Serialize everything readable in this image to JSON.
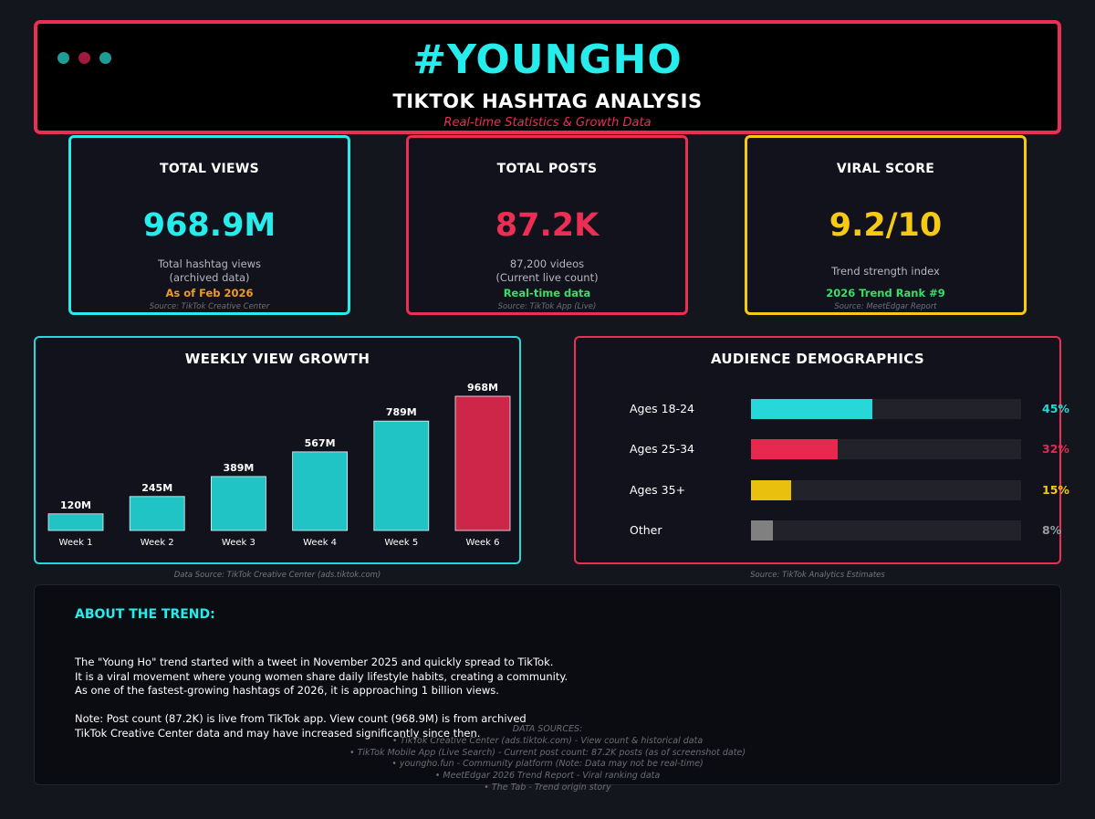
{
  "header": {
    "hashtag": "#YOUNGHO",
    "subtitle": "TIKTOK HASHTAG ANALYSIS",
    "tagline": "Real-time Statistics & Growth Data"
  },
  "cards": [
    {
      "title": "TOTAL VIEWS",
      "value": "968.9M",
      "desc1": "Total hashtag views",
      "desc2": "(archived data)",
      "note": "As of Feb 2026",
      "source": "Source: TikTok Creative Center",
      "color": "#27ecec",
      "note_color": "#f29a22"
    },
    {
      "title": "TOTAL POSTS",
      "value": "87.2K",
      "desc1": "87,200 videos",
      "desc2": "(Current live count)",
      "note": "Real-time data",
      "source": "Source: TikTok App (Live)",
      "color": "#ea2e54",
      "note_color": "#35e06a"
    },
    {
      "title": "VIRAL SCORE",
      "value": "9.2/10",
      "desc1": "Trend strength index",
      "desc2": "",
      "note": "2026 Trend Rank #9",
      "source": "Source: MeetEdgar Report",
      "color": "#f6c915",
      "note_color": "#35e06a"
    }
  ],
  "chart_data": {
    "type": "bar",
    "title": "WEEKLY VIEW GROWTH",
    "categories": [
      "Week 1",
      "Week 2",
      "Week 3",
      "Week 4",
      "Week 5",
      "Week 6"
    ],
    "values": [
      120,
      245,
      389,
      567,
      789,
      968
    ],
    "value_labels": [
      "120M",
      "245M",
      "389M",
      "567M",
      "789M",
      "968M"
    ],
    "colors": [
      "#21c4c4",
      "#21c4c4",
      "#21c4c4",
      "#21c4c4",
      "#21c4c4",
      "#cd2649"
    ],
    "source": "Data Source: TikTok Creative Center (ads.tiktok.com)"
  },
  "demographics": {
    "title": "AUDIENCE DEMOGRAPHICS",
    "source": "Source: TikTok Analytics Estimates",
    "rows": [
      {
        "label": "Ages 18-24",
        "pct_text": "45%",
        "fraction": 0.45,
        "color": "#27d8d8",
        "text_color": "#27d8d8"
      },
      {
        "label": "Ages 25-34",
        "pct_text": "32%",
        "fraction": 0.32,
        "color": "#e8294f",
        "text_color": "#e8294f"
      },
      {
        "label": "Ages 35+",
        "pct_text": "15%",
        "fraction": 0.15,
        "color": "#e9c00e",
        "text_color": "#f6c915"
      },
      {
        "label": "Other",
        "pct_text": "8%",
        "fraction": 0.08,
        "color": "#808080",
        "text_color": "#9a9aa2"
      }
    ]
  },
  "about": {
    "title": "ABOUT THE TREND:",
    "lines": [
      "The \"Young Ho\" trend started with a tweet in November 2025 and quickly spread to TikTok.",
      "It is a viral movement where young women share daily lifestyle habits, creating a community.",
      "As one of the fastest-growing hashtags of 2026, it is approaching 1 billion views.",
      "",
      "Note: Post count (87.2K) is live from TikTok app. View count (968.9M) is from archived",
      "TikTok Creative Center data and may have increased significantly since then."
    ],
    "sources_title": "DATA SOURCES:",
    "sources": [
      "• TikTok Creative Center (ads.tiktok.com) - View count & historical data",
      "• TikTok Mobile App (Live Search) - Current post count: 87.2K posts (as of screenshot date)",
      "• youngho.fun - Community platform (Note: Data may not be real-time)",
      "• MeetEdgar 2026 Trend Report - Viral ranking data",
      "• The Tab - Trend origin story"
    ]
  }
}
